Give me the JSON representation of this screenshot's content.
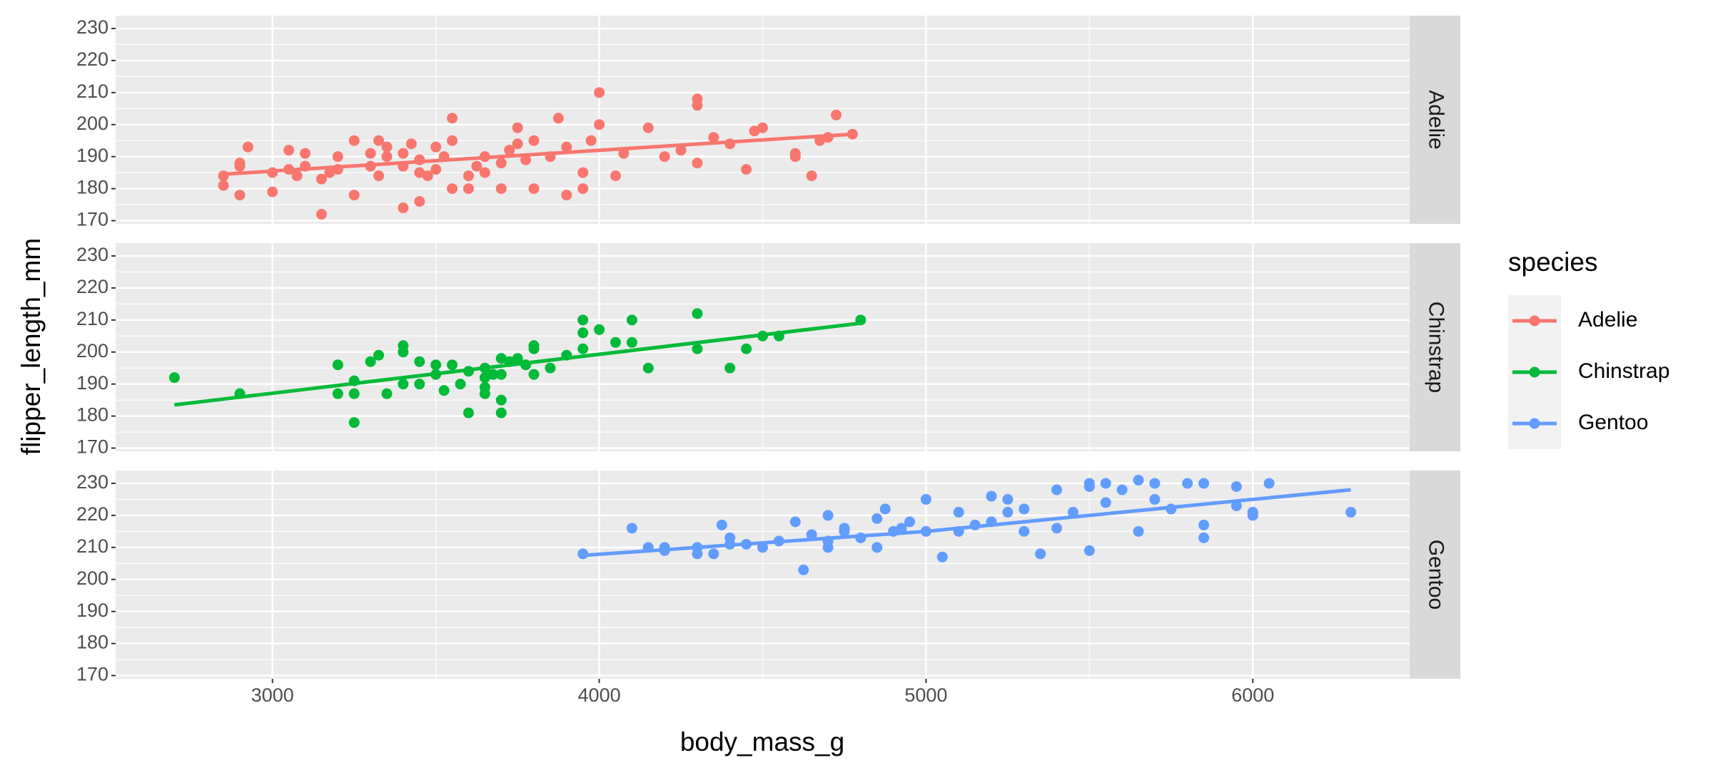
{
  "chart_data": {
    "type": "scatter",
    "x_label": "body_mass_g",
    "y_label": "flipper_length_mm",
    "legend_title": "species",
    "legend": "right",
    "grid": true,
    "xlim": [
      2520,
      6480
    ],
    "ylim": [
      169,
      234
    ],
    "xticks": [
      3000,
      4000,
      5000,
      6000
    ],
    "yticks": [
      170,
      180,
      190,
      200,
      210,
      220,
      230
    ],
    "series": [
      {
        "name": "Adelie",
        "color": "#F8766D",
        "x": [
          2850,
          2850,
          2900,
          2900,
          2900,
          2925,
          3000,
          3000,
          3050,
          3050,
          3075,
          3100,
          3100,
          3150,
          3150,
          3175,
          3200,
          3200,
          3250,
          3250,
          3300,
          3300,
          3325,
          3325,
          3350,
          3350,
          3400,
          3400,
          3400,
          3425,
          3450,
          3450,
          3450,
          3475,
          3500,
          3500,
          3525,
          3550,
          3550,
          3550,
          3600,
          3600,
          3625,
          3650,
          3650,
          3700,
          3700,
          3725,
          3750,
          3750,
          3775,
          3800,
          3800,
          3850,
          3875,
          3900,
          3900,
          3950,
          3950,
          3975,
          4000,
          4000,
          4050,
          4075,
          4150,
          4200,
          4250,
          4300,
          4300,
          4300,
          4350,
          4400,
          4450,
          4475,
          4500,
          4600,
          4600,
          4650,
          4675,
          4700,
          4725,
          4775
        ],
        "values": [
          184,
          181,
          178,
          187,
          188,
          193,
          179,
          185,
          192,
          186,
          184,
          187,
          191,
          183,
          172,
          185,
          186,
          190,
          178,
          195,
          187,
          191,
          184,
          195,
          193,
          190,
          174,
          187,
          191,
          194,
          176,
          185,
          189,
          184,
          193,
          186,
          190,
          202,
          195,
          180,
          184,
          180,
          187,
          190,
          185,
          188,
          180,
          192,
          199,
          194,
          189,
          180,
          195,
          190,
          202,
          178,
          193,
          180,
          185,
          195,
          210,
          200,
          184,
          191,
          199,
          190,
          192,
          208,
          206,
          188,
          196,
          194,
          186,
          198,
          199,
          190,
          191,
          184,
          195,
          196,
          203,
          197
        ],
        "trend": {
          "x": [
            2850,
            4775
          ],
          "values": [
            184.5,
            197
          ]
        }
      },
      {
        "name": "Chinstrap",
        "color": "#00BA38",
        "x": [
          2700,
          2900,
          3200,
          3200,
          3250,
          3250,
          3250,
          3300,
          3325,
          3350,
          3400,
          3400,
          3400,
          3450,
          3450,
          3500,
          3500,
          3525,
          3550,
          3575,
          3600,
          3600,
          3650,
          3650,
          3650,
          3650,
          3675,
          3700,
          3700,
          3700,
          3700,
          3725,
          3750,
          3775,
          3800,
          3800,
          3800,
          3850,
          3900,
          3950,
          3950,
          3950,
          4000,
          4050,
          4100,
          4100,
          4150,
          4300,
          4300,
          4400,
          4450,
          4500,
          4550,
          4800
        ],
        "values": [
          192,
          187,
          187,
          196,
          178,
          187,
          191,
          197,
          199,
          187,
          190,
          200,
          202,
          197,
          190,
          196,
          193,
          188,
          196,
          190,
          181,
          194,
          187,
          189,
          192,
          195,
          193,
          181,
          185,
          198,
          193,
          197,
          198,
          196,
          193,
          201,
          202,
          195,
          199,
          201,
          206,
          210,
          207,
          203,
          210,
          203,
          195,
          212,
          201,
          195,
          201,
          205,
          205,
          210
        ],
        "trend": {
          "x": [
            2700,
            4800
          ],
          "values": [
            183.5,
            209
          ]
        }
      },
      {
        "name": "Gentoo",
        "color": "#619CFF",
        "x": [
          3950,
          4100,
          4150,
          4200,
          4200,
          4300,
          4300,
          4350,
          4375,
          4400,
          4400,
          4450,
          4500,
          4550,
          4600,
          4625,
          4650,
          4700,
          4700,
          4700,
          4750,
          4750,
          4800,
          4850,
          4850,
          4875,
          4900,
          4925,
          4950,
          5000,
          5000,
          5050,
          5100,
          5100,
          5150,
          5200,
          5200,
          5250,
          5250,
          5300,
          5300,
          5350,
          5400,
          5400,
          5450,
          5500,
          5500,
          5500,
          5550,
          5550,
          5600,
          5650,
          5650,
          5700,
          5700,
          5750,
          5800,
          5850,
          5850,
          5850,
          5950,
          5950,
          6000,
          6000,
          6050,
          6300
        ],
        "values": [
          208,
          216,
          210,
          209,
          210,
          208,
          210,
          208,
          217,
          213,
          211,
          211,
          210,
          212,
          218,
          203,
          214,
          220,
          212,
          210,
          216,
          215,
          213,
          219,
          210,
          222,
          215,
          216,
          218,
          225,
          215,
          207,
          221,
          215,
          217,
          226,
          218,
          225,
          221,
          222,
          215,
          208,
          228,
          216,
          221,
          229,
          230,
          209,
          230,
          224,
          228,
          231,
          215,
          230,
          225,
          222,
          230,
          230,
          213,
          217,
          229,
          223,
          220,
          221,
          230,
          221
        ],
        "trend": {
          "x": [
            3950,
            5000,
            6300
          ],
          "values": [
            207.5,
            215,
            228
          ]
        }
      }
    ]
  }
}
